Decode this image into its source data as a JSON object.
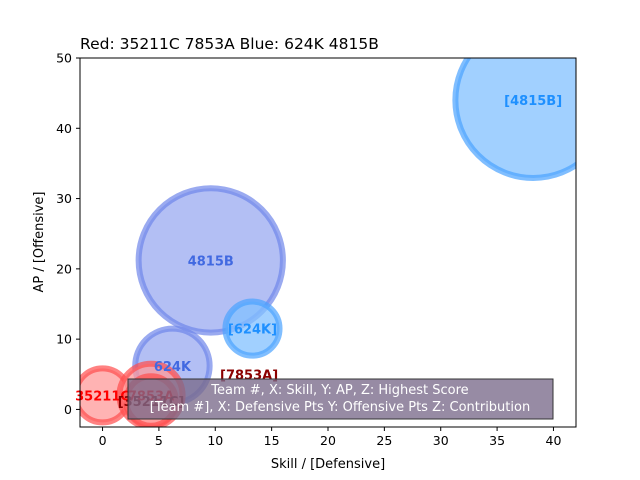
{
  "chart_data": {
    "type": "scatter",
    "title": "Red: 35211C 7853A  Blue: 624K 4815B",
    "xlabel": "Skill / [Defensive]",
    "ylabel": "AP / [Offensive]",
    "xlim": [
      -2,
      42
    ],
    "ylim": [
      -2.5,
      50
    ],
    "xticks": [
      0,
      5,
      10,
      15,
      20,
      25,
      30,
      35,
      40
    ],
    "yticks": [
      0,
      10,
      20,
      30,
      40,
      50
    ],
    "grid": false,
    "series": [
      {
        "points": [
          {
            "label": "35211C",
            "x": 0,
            "y": 2,
            "size": 2.4,
            "fill": "#ff9999",
            "edge": "#ff4d4d",
            "label_color": "#ff0000",
            "label_style": "plain"
          },
          {
            "label": "7853A",
            "x": 4.3,
            "y": 2,
            "size": 2.8,
            "fill": "#ff9999",
            "edge": "#ff4d4d",
            "label_color": "#ff0000",
            "label_style": "plain"
          },
          {
            "label": "[35211C]",
            "x": 4.3,
            "y": 1.2,
            "size": 2.2,
            "fill": "#ff9999",
            "edge": "#ff4d4d",
            "label_color": "#8b0000",
            "label_style": "bracket"
          },
          {
            "label": "[7853A]",
            "x": 13.0,
            "y": 5.0,
            "size": 0,
            "fill": "#ff9999",
            "edge": "#ff4d4d",
            "label_color": "#8b0000",
            "label_style": "bracket"
          }
        ]
      },
      {
        "points": [
          {
            "label": "624K",
            "x": 6.2,
            "y": 6.2,
            "size": 3.3,
            "fill": "#9aaaf0",
            "edge": "#6f86ea",
            "label_color": "#4169e1",
            "label_style": "plain"
          },
          {
            "label": "4815B",
            "x": 9.6,
            "y": 21.2,
            "size": 6.4,
            "fill": "#9aaaf0",
            "edge": "#6f86ea",
            "label_color": "#4169e1",
            "label_style": "plain"
          },
          {
            "label": "[624K]",
            "x": 13.3,
            "y": 11.5,
            "size": 2.4,
            "fill": "#82c0ff",
            "edge": "#4aa3ff",
            "label_color": "#1e90ff",
            "label_style": "bracket"
          },
          {
            "label": "[4815B]",
            "x": 38.2,
            "y": 44.0,
            "size": 6.9,
            "fill": "#82c0ff",
            "edge": "#4aa3ff",
            "label_color": "#1e90ff",
            "label_style": "bracket"
          }
        ]
      }
    ],
    "annotation": {
      "lines": [
        "Team #, X: Skill, Y: AP, Z: Highest Score",
        "[Team #], X: Defensive Pts Y: Offensive Pts Z: Contribution"
      ],
      "background": "#7a6a8a",
      "text_color": "#ffffff"
    }
  }
}
